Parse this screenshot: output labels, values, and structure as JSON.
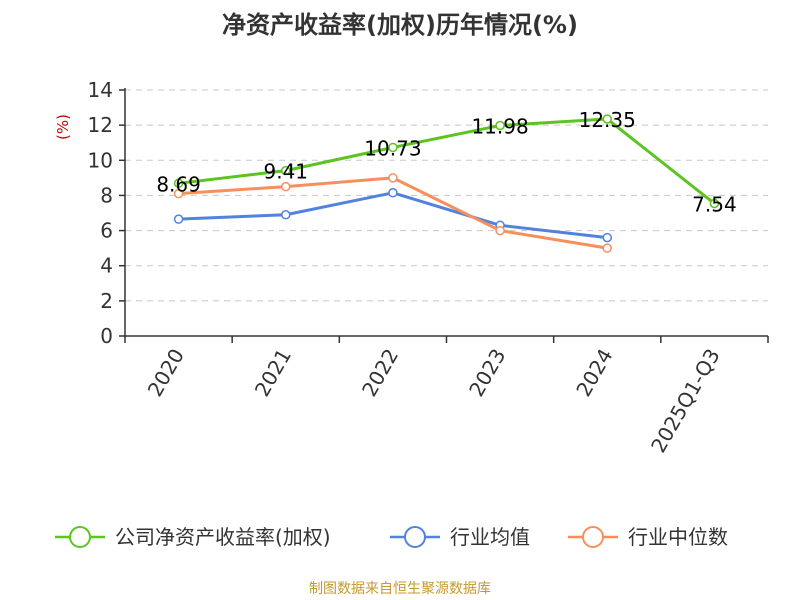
{
  "chart_data": {
    "type": "line",
    "title": "净资产收益率(加权)历年情况(%)",
    "ylabel": "(%)",
    "xlabel": "",
    "ylim": [
      0,
      14
    ],
    "yticks": [
      0,
      2,
      4,
      6,
      8,
      10,
      12,
      14
    ],
    "categories": [
      "2020",
      "2021",
      "2022",
      "2023",
      "2024",
      "2025Q1-Q3"
    ],
    "grid": true,
    "legend_position": "bottom",
    "series": [
      {
        "name": "公司净资产收益率(加权)",
        "color": "#5cc41f",
        "values": [
          8.69,
          9.41,
          10.73,
          11.98,
          12.35,
          7.54
        ],
        "labels": [
          "8.69",
          "9.41",
          "10.73",
          "11.98",
          "12.35",
          "7.54"
        ]
      },
      {
        "name": "行业均值",
        "color": "#5182dd",
        "values": [
          6.65,
          6.9,
          8.15,
          6.3,
          5.6,
          null
        ]
      },
      {
        "name": "行业中位数",
        "color": "#f78f5c",
        "values": [
          8.1,
          8.5,
          9.0,
          6.0,
          5.0,
          null
        ]
      }
    ]
  },
  "colors": {
    "unit_label": "#cc0000",
    "source_text": "#c49a2e",
    "axis": "#333333"
  },
  "source": "制图数据来自恒生聚源数据库"
}
